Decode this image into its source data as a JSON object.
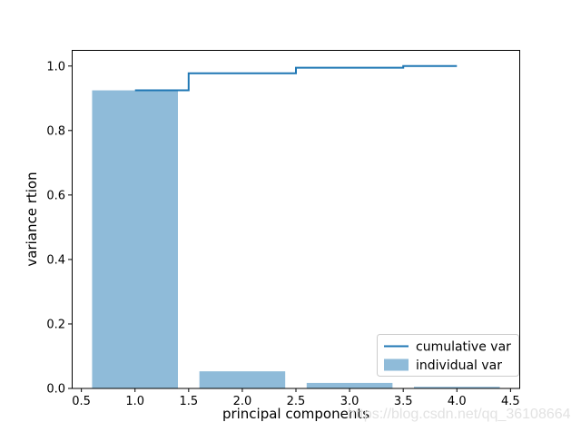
{
  "watermark": "https://blog.csdn.net/qq_36108664",
  "colors": {
    "line": "#1f77b4",
    "bar_fill": "rgba(31,119,180,0.5)",
    "spine": "#000000",
    "legend_border": "#cccccc",
    "legend_bg": "rgba(255,255,255,0.8)",
    "watermark": "#e2e2e2"
  },
  "chart_data": {
    "type": "bar",
    "title": "",
    "xlabel": "principal components",
    "ylabel": "variance rtion",
    "x": [
      1,
      2,
      3,
      4
    ],
    "series": [
      {
        "name": "cumulative var",
        "type": "step-line",
        "step_where": "mid",
        "values": [
          0.9246,
          0.9777,
          0.9948,
          1.0
        ],
        "color": "#1f77b4",
        "line_width": 2
      },
      {
        "name": "individual var",
        "type": "bar",
        "bar_width": 0.8,
        "values": [
          0.9246,
          0.0531,
          0.0171,
          0.0052
        ],
        "color": "rgba(31,119,180,0.5)"
      }
    ],
    "xlim": [
      0.41,
      4.59
    ],
    "ylim": [
      0,
      1.05
    ],
    "xticks": {
      "values": [
        0.5,
        1.0,
        1.5,
        2.0,
        2.5,
        3.0,
        3.5,
        4.0,
        4.5
      ],
      "labels": [
        "0.5",
        "1.0",
        "1.5",
        "2.0",
        "2.5",
        "3.0",
        "3.5",
        "4.0",
        "4.5"
      ]
    },
    "yticks": {
      "values": [
        0.0,
        0.2,
        0.4,
        0.6,
        0.8,
        1.0
      ],
      "labels": [
        "0.0",
        "0.2",
        "0.4",
        "0.6",
        "0.8",
        "1.0"
      ]
    },
    "grid": false,
    "legend": {
      "position": "lower right",
      "entries": [
        "cumulative var",
        "individual var"
      ]
    }
  }
}
